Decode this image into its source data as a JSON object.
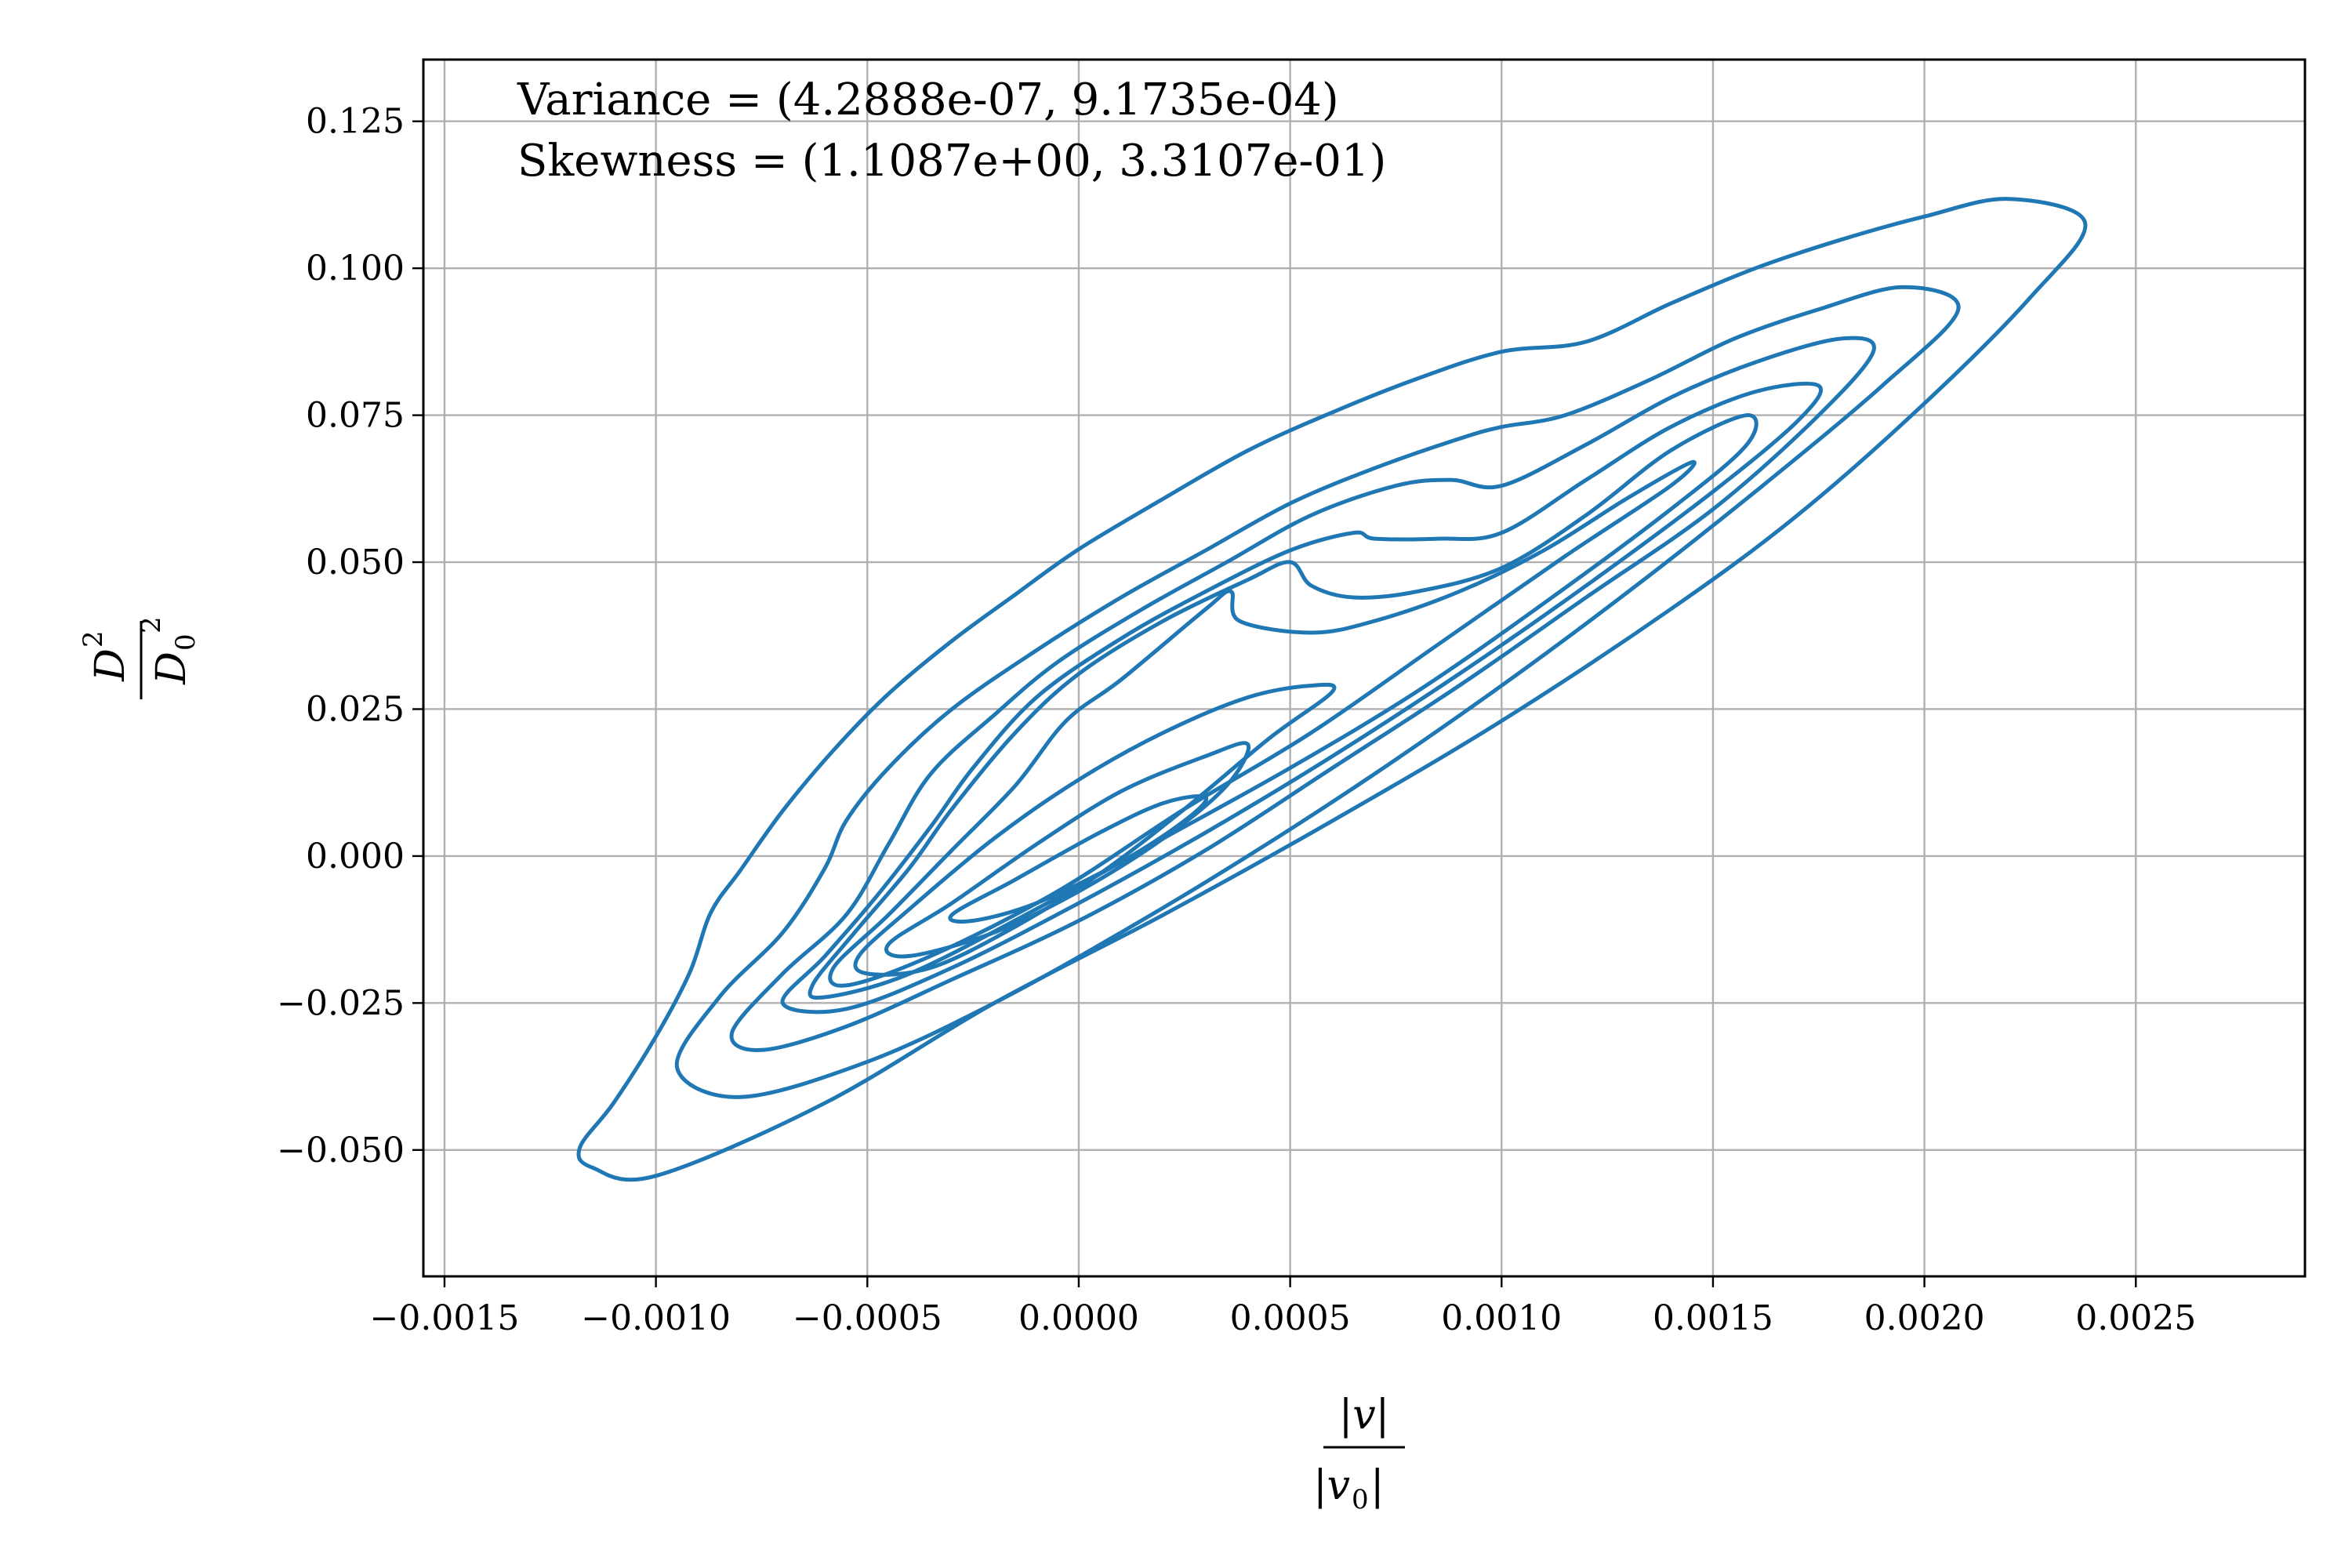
{
  "chart_data": {
    "type": "kde-contour",
    "xlim": [
      -0.00155,
      0.0029
    ],
    "ylim": [
      -0.0715,
      0.1355
    ],
    "grid": true,
    "line_color": "#1f77b4",
    "x_ticks": [
      {
        "value": -0.0015,
        "label": "−0.0015"
      },
      {
        "value": -0.001,
        "label": "−0.0010"
      },
      {
        "value": -0.0005,
        "label": "−0.0005"
      },
      {
        "value": 0.0,
        "label": "0.0000"
      },
      {
        "value": 0.0005,
        "label": "0.0005"
      },
      {
        "value": 0.001,
        "label": "0.0010"
      },
      {
        "value": 0.0015,
        "label": "0.0015"
      },
      {
        "value": 0.002,
        "label": "0.0020"
      },
      {
        "value": 0.0025,
        "label": "0.0025"
      }
    ],
    "y_ticks": [
      {
        "value": -0.05,
        "label": "−0.050"
      },
      {
        "value": -0.025,
        "label": "−0.025"
      },
      {
        "value": 0.0,
        "label": "0.000"
      },
      {
        "value": 0.025,
        "label": "0.025"
      },
      {
        "value": 0.05,
        "label": "0.050"
      },
      {
        "value": 0.075,
        "label": "0.075"
      },
      {
        "value": 0.1,
        "label": "0.100"
      },
      {
        "value": 0.125,
        "label": "0.125"
      }
    ],
    "annotations": [
      "Variance = (4.2888e-07, 9.1735e-04)",
      "Skewness = (1.1087e+00, 3.3107e-01)"
    ],
    "xlabel": {
      "numerator": "|v|",
      "denominator": "|v",
      "denominator_sub": "0",
      "denominator_tail": "|"
    },
    "ylabel": {
      "numerator": "D",
      "numerator_sup": "2",
      "denominator": "D",
      "denominator_sub": "0",
      "denominator_sup": "2"
    },
    "contours": [
      {
        "level": 1,
        "points": [
          [
            -0.00118,
            -0.0496
          ],
          [
            -0.0011,
            -0.042
          ],
          [
            -0.001,
            -0.0307
          ],
          [
            -0.00092,
            -0.0198
          ],
          [
            -0.00087,
            -0.0096
          ],
          [
            -0.0008,
            -0.0024
          ],
          [
            -0.0007,
            0.0077
          ],
          [
            -0.00058,
            0.018
          ],
          [
            -0.00045,
            0.0276
          ],
          [
            -0.0003,
            0.0366
          ],
          [
            -0.00015,
            0.0445
          ],
          [
            0.0,
            0.0522
          ],
          [
            0.0002,
            0.0608
          ],
          [
            0.0004,
            0.069
          ],
          [
            0.0006,
            0.0755
          ],
          [
            0.0008,
            0.0812
          ],
          [
            0.001,
            0.0858
          ],
          [
            0.0012,
            0.0875
          ],
          [
            0.0014,
            0.094
          ],
          [
            0.0016,
            0.1
          ],
          [
            0.0018,
            0.1048
          ],
          [
            0.002,
            0.1088
          ],
          [
            0.0022,
            0.1118
          ],
          [
            0.00238,
            0.1077
          ],
          [
            0.00225,
            0.095
          ],
          [
            0.002,
            0.077
          ],
          [
            0.0017,
            0.058
          ],
          [
            0.0014,
            0.042
          ],
          [
            0.001,
            0.023
          ],
          [
            0.0006,
            0.006
          ],
          [
            0.0002,
            -0.01
          ],
          [
            -0.0002,
            -0.025
          ],
          [
            -0.0006,
            -0.042
          ],
          [
            -0.001,
            -0.0544
          ],
          [
            -0.00115,
            -0.053
          ],
          [
            -0.00118,
            -0.0496
          ]
        ]
      },
      {
        "level": 2,
        "points": [
          [
            -0.00095,
            -0.036
          ],
          [
            -0.00085,
            -0.024
          ],
          [
            -0.0007,
            -0.013
          ],
          [
            -0.0006,
            -0.002
          ],
          [
            -0.00055,
            0.006
          ],
          [
            -0.00045,
            0.015
          ],
          [
            -0.0003,
            0.025
          ],
          [
            -0.0001,
            0.035
          ],
          [
            0.0001,
            0.044
          ],
          [
            0.0003,
            0.052
          ],
          [
            0.0005,
            0.06
          ],
          [
            0.0007,
            0.066
          ],
          [
            0.0009,
            0.071
          ],
          [
            0.001,
            0.073
          ],
          [
            0.00115,
            0.075
          ],
          [
            0.00135,
            0.081
          ],
          [
            0.00155,
            0.088
          ],
          [
            0.00175,
            0.093
          ],
          [
            0.00195,
            0.0968
          ],
          [
            0.00208,
            0.093
          ],
          [
            0.0019,
            0.08
          ],
          [
            0.0016,
            0.062
          ],
          [
            0.0013,
            0.045
          ],
          [
            0.001,
            0.029
          ],
          [
            0.0007,
            0.014
          ],
          [
            0.0004,
            0.0
          ],
          [
            0.0001,
            -0.013
          ],
          [
            -0.0002,
            -0.025
          ],
          [
            -0.0005,
            -0.035
          ],
          [
            -0.0008,
            -0.041
          ],
          [
            -0.00095,
            -0.036
          ]
        ]
      },
      {
        "level": 3,
        "points": [
          [
            -0.00082,
            -0.03
          ],
          [
            -0.0007,
            -0.02
          ],
          [
            -0.00055,
            -0.01
          ],
          [
            -0.00045,
            0.002
          ],
          [
            -0.00035,
            0.014
          ],
          [
            -0.0002,
            0.024
          ],
          [
            -5e-05,
            0.033
          ],
          [
            0.00015,
            0.042
          ],
          [
            0.00035,
            0.05
          ],
          [
            0.00055,
            0.058
          ],
          [
            0.00075,
            0.063
          ],
          [
            0.00088,
            0.064
          ],
          [
            0.001,
            0.063
          ],
          [
            0.0012,
            0.07
          ],
          [
            0.0014,
            0.078
          ],
          [
            0.0016,
            0.084
          ],
          [
            0.0018,
            0.088
          ],
          [
            0.00188,
            0.086
          ],
          [
            0.00175,
            0.075
          ],
          [
            0.0015,
            0.059
          ],
          [
            0.0012,
            0.044
          ],
          [
            0.0009,
            0.029
          ],
          [
            0.0006,
            0.015
          ],
          [
            0.0003,
            0.001
          ],
          [
            0.0,
            -0.011
          ],
          [
            -0.0003,
            -0.021
          ],
          [
            -0.00055,
            -0.029
          ],
          [
            -0.00075,
            -0.033
          ],
          [
            -0.00082,
            -0.03
          ]
        ]
      },
      {
        "level": 4,
        "points": [
          [
            -0.0007,
            -0.025
          ],
          [
            -0.0006,
            -0.017
          ],
          [
            -0.00048,
            -0.007
          ],
          [
            -0.00035,
            0.005
          ],
          [
            -0.00025,
            0.015
          ],
          [
            -0.0001,
            0.027
          ],
          [
            0.0001,
            0.037
          ],
          [
            0.0003,
            0.045
          ],
          [
            0.0005,
            0.052
          ],
          [
            0.00065,
            0.055
          ],
          [
            0.0007,
            0.054
          ],
          [
            0.00085,
            0.054
          ],
          [
            0.001,
            0.055
          ],
          [
            0.0012,
            0.064
          ],
          [
            0.0014,
            0.073
          ],
          [
            0.0016,
            0.079
          ],
          [
            0.00175,
            0.08
          ],
          [
            0.0017,
            0.074
          ],
          [
            0.0015,
            0.062
          ],
          [
            0.0012,
            0.046
          ],
          [
            0.0009,
            0.031
          ],
          [
            0.0006,
            0.017
          ],
          [
            0.0003,
            0.004
          ],
          [
            0.0,
            -0.008
          ],
          [
            -0.0003,
            -0.019
          ],
          [
            -0.00055,
            -0.026
          ],
          [
            -0.0007,
            -0.025
          ]
        ]
      },
      {
        "level": 5,
        "points": [
          [
            -0.00063,
            -0.022
          ],
          [
            -0.00053,
            -0.013
          ],
          [
            -0.0004,
            -0.002
          ],
          [
            -0.0003,
            0.008
          ],
          [
            -0.00015,
            0.021
          ],
          [
            0.0,
            0.031
          ],
          [
            0.0002,
            0.04
          ],
          [
            0.0004,
            0.047
          ],
          [
            0.0005,
            0.05
          ],
          [
            0.00055,
            0.046
          ],
          [
            0.00065,
            0.044
          ],
          [
            0.0008,
            0.045
          ],
          [
            0.001,
            0.049
          ],
          [
            0.0012,
            0.058
          ],
          [
            0.0014,
            0.069
          ],
          [
            0.00158,
            0.075
          ],
          [
            0.00158,
            0.07
          ],
          [
            0.0014,
            0.059
          ],
          [
            0.0011,
            0.043
          ],
          [
            0.0008,
            0.028
          ],
          [
            0.0005,
            0.015
          ],
          [
            0.0002,
            0.003
          ],
          [
            -0.0001,
            -0.009
          ],
          [
            -0.0004,
            -0.02
          ],
          [
            -0.0006,
            -0.024
          ],
          [
            -0.00063,
            -0.022
          ]
        ]
      },
      {
        "level": 6,
        "points": [
          [
            -0.00058,
            -0.019
          ],
          [
            -0.00045,
            -0.01
          ],
          [
            -0.0003,
            0.001
          ],
          [
            -0.00015,
            0.012
          ],
          [
            -3e-05,
            0.023
          ],
          [
            0.0001,
            0.03
          ],
          [
            0.0003,
            0.042
          ],
          [
            0.00036,
            0.045
          ],
          [
            0.00038,
            0.04
          ],
          [
            0.00055,
            0.038
          ],
          [
            0.0007,
            0.04
          ],
          [
            0.0009,
            0.045
          ],
          [
            0.0011,
            0.052
          ],
          [
            0.0013,
            0.061
          ],
          [
            0.00145,
            0.067
          ],
          [
            0.0014,
            0.063
          ],
          [
            0.00115,
            0.051
          ],
          [
            0.00085,
            0.036
          ],
          [
            0.00055,
            0.021
          ],
          [
            0.00025,
            0.008
          ],
          [
            -5e-05,
            -0.006
          ],
          [
            -0.00035,
            -0.017
          ],
          [
            -0.00055,
            -0.022
          ],
          [
            -0.00058,
            -0.019
          ]
        ]
      },
      {
        "level": 7,
        "points": [
          [
            -0.00052,
            -0.017
          ],
          [
            -0.0004,
            -0.009
          ],
          [
            -0.0002,
            0.003
          ],
          [
            0.0,
            0.013
          ],
          [
            0.0002,
            0.021
          ],
          [
            0.0004,
            0.027
          ],
          [
            0.00055,
            0.029
          ],
          [
            0.0006,
            0.028
          ],
          [
            0.00045,
            0.02
          ],
          [
            0.00025,
            0.008
          ],
          [
            5e-05,
            -0.003
          ],
          [
            -0.00015,
            -0.012
          ],
          [
            -0.00035,
            -0.019
          ],
          [
            -0.0005,
            -0.02
          ],
          [
            -0.00052,
            -0.017
          ]
        ]
      },
      {
        "level": 8,
        "points": [
          [
            -0.00045,
            -0.015
          ],
          [
            -0.0003,
            -0.008
          ],
          [
            -0.0001,
            0.002
          ],
          [
            0.0001,
            0.011
          ],
          [
            0.0003,
            0.017
          ],
          [
            0.0004,
            0.019
          ],
          [
            0.00035,
            0.012
          ],
          [
            0.0002,
            0.003
          ],
          [
            0.0,
            -0.006
          ],
          [
            -0.0002,
            -0.013
          ],
          [
            -0.0004,
            -0.017
          ],
          [
            -0.00045,
            -0.015
          ]
        ]
      },
      {
        "level": 9,
        "points": [
          [
            -0.0003,
            -0.01
          ],
          [
            -0.00015,
            -0.004
          ],
          [
            5e-05,
            0.004
          ],
          [
            0.0002,
            0.009
          ],
          [
            0.0003,
            0.01
          ],
          [
            0.00025,
            0.006
          ],
          [
            0.0001,
            -0.001
          ],
          [
            -0.0001,
            -0.008
          ],
          [
            -0.00025,
            -0.011
          ],
          [
            -0.0003,
            -0.01
          ]
        ]
      }
    ]
  }
}
